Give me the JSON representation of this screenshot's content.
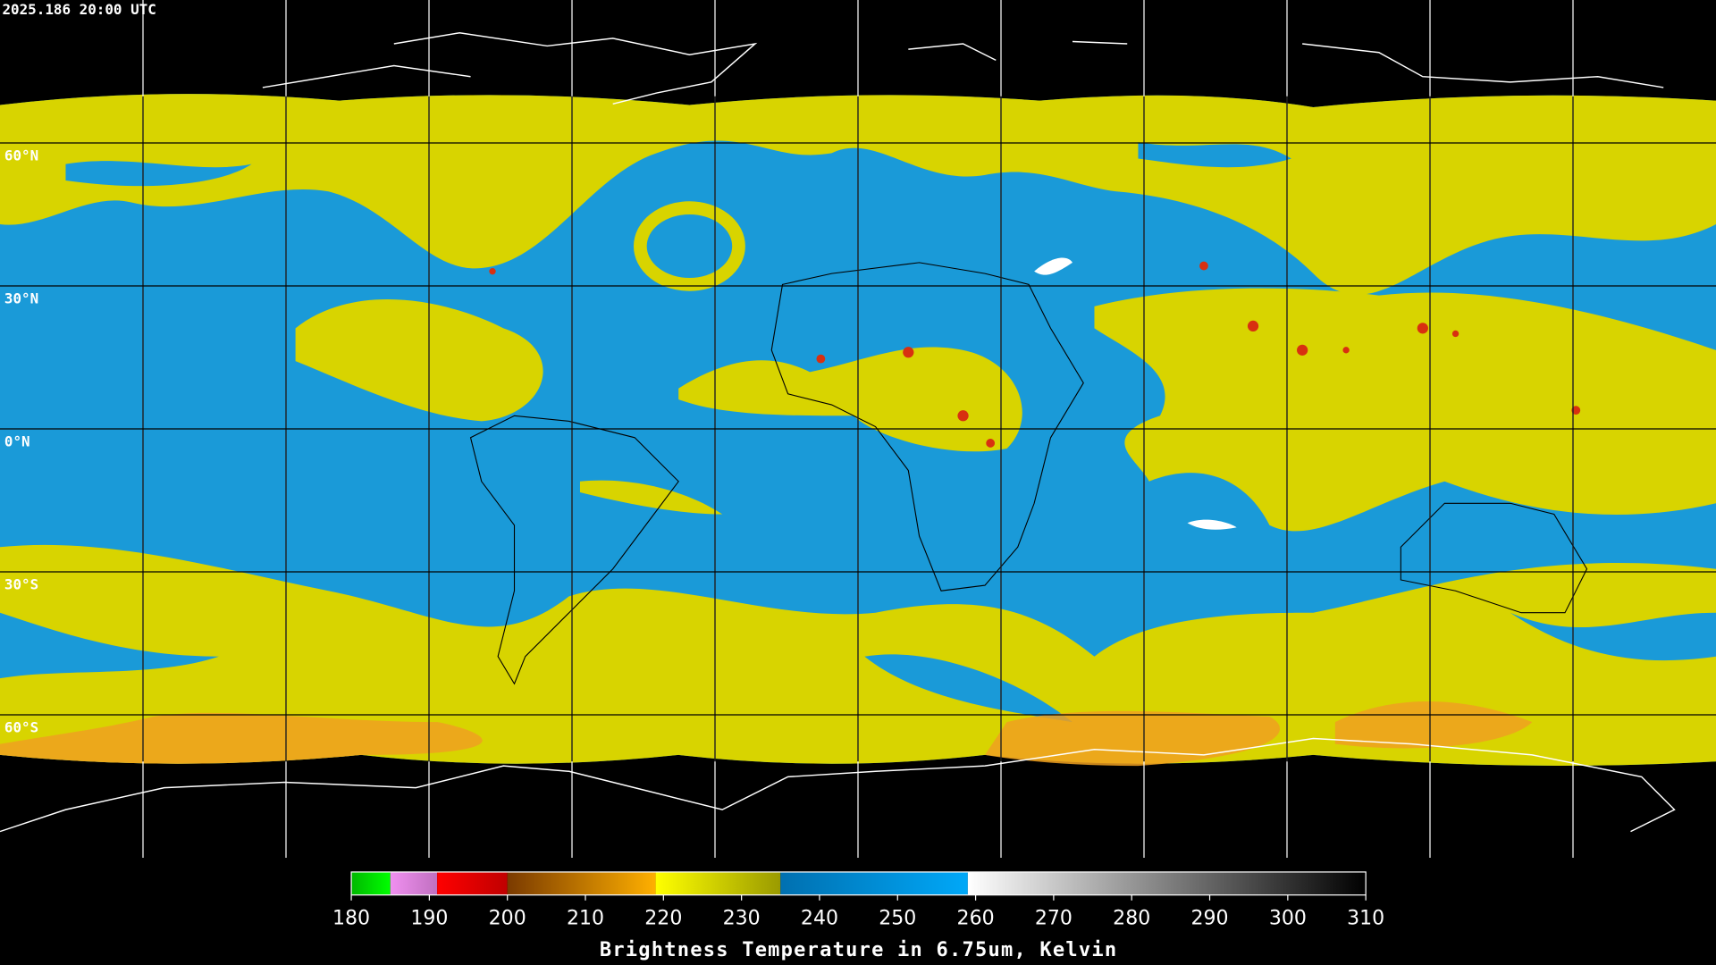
{
  "header": {
    "timestamp": "2025.186 20:00 UTC"
  },
  "parallels": [
    {
      "value": 60,
      "label": "60°N"
    },
    {
      "value": 30,
      "label": "30°N"
    },
    {
      "value": 0,
      "label": "0°N"
    },
    {
      "value": -30,
      "label": "30°S"
    },
    {
      "value": -60,
      "label": "60°S"
    }
  ],
  "colorbar": {
    "label": "Brightness Temperature in 6.75um, Kelvin",
    "range": [
      180,
      310
    ],
    "ticks": [
      180,
      190,
      200,
      210,
      220,
      230,
      240,
      250,
      260,
      270,
      280,
      290,
      300,
      310
    ],
    "segments": [
      {
        "from": 180,
        "to": 185,
        "colors": [
          "#00b800",
          "#00ff00"
        ]
      },
      {
        "from": 185,
        "to": 191,
        "colors": [
          "#f090f0",
          "#c070c0"
        ]
      },
      {
        "from": 191,
        "to": 200,
        "colors": [
          "#ff0000",
          "#c00000"
        ]
      },
      {
        "from": 200,
        "to": 219,
        "colors": [
          "#7a3a00",
          "#ffb000"
        ]
      },
      {
        "from": 219,
        "to": 235,
        "colors": [
          "#ffff00",
          "#9a9a00"
        ]
      },
      {
        "from": 235,
        "to": 259,
        "colors": [
          "#0070b0",
          "#00a8f8"
        ]
      },
      {
        "from": 259,
        "to": 310,
        "colors": [
          "#ffffff",
          "#000000"
        ]
      }
    ]
  }
}
